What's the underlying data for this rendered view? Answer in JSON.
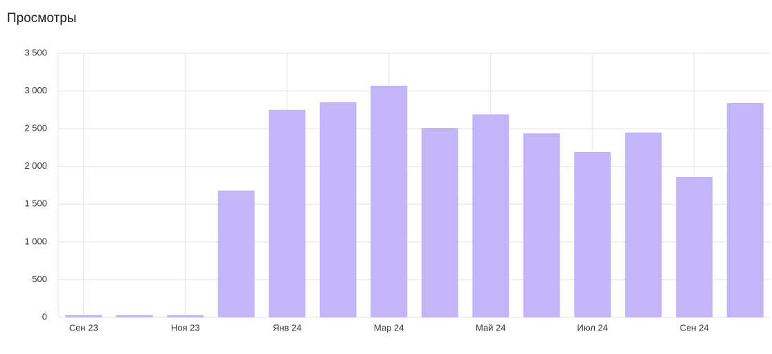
{
  "chart_data": {
    "type": "bar",
    "title": "Просмотры",
    "categories": [
      "Сен 23",
      null,
      "Ноя 23",
      null,
      "Янв 24",
      null,
      "Мар 24",
      null,
      "Май 24",
      null,
      "Июл 24",
      null,
      "Сен 24",
      null
    ],
    "values": [
      30,
      30,
      30,
      1680,
      2750,
      2850,
      3070,
      2510,
      2690,
      2440,
      2190,
      2450,
      1860,
      2840
    ],
    "color": "#c4b5f9",
    "ylim": [
      0,
      3500
    ],
    "yticks": [
      0,
      500,
      {
        "value": 1000,
        "label": "1 000"
      },
      {
        "value": 1500,
        "label": "1 500"
      },
      {
        "value": 2000,
        "label": "2 000"
      },
      {
        "value": 2500,
        "label": "2 500"
      },
      {
        "value": 3000,
        "label": "3 000"
      },
      {
        "value": 3500,
        "label": "3 500"
      }
    ],
    "grid": true
  }
}
